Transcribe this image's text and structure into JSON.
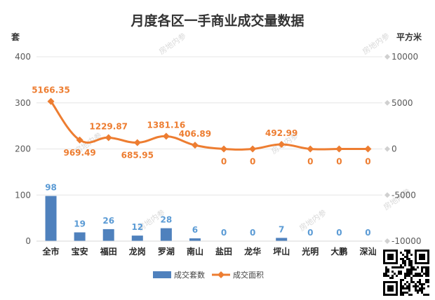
{
  "chart_data": {
    "type": "bar+line",
    "title": "月度各区一手商业成交量数据",
    "categories": [
      "全市",
      "宝安",
      "福田",
      "龙岗",
      "罗湖",
      "南山",
      "盐田",
      "龙华",
      "坪山",
      "光明",
      "大鹏",
      "深汕"
    ],
    "series": [
      {
        "name": "成交套数",
        "type": "bar",
        "axis": "left",
        "values": [
          98,
          19,
          26,
          12,
          28,
          6,
          0,
          0,
          7,
          0,
          0,
          0
        ],
        "labels": [
          "98",
          "19",
          "26",
          "12",
          "28",
          "6",
          "0",
          "0",
          "7",
          "0",
          "0",
          "0"
        ]
      },
      {
        "name": "成交面积",
        "type": "line",
        "axis": "right",
        "values": [
          5166.35,
          969.49,
          1229.87,
          685.95,
          1381.16,
          406.89,
          0,
          0,
          492.99,
          0,
          0,
          0
        ],
        "labels": [
          "5166.35",
          "969.49",
          "1229.87",
          "685.95",
          "1381.16",
          "406.89",
          "0",
          "0",
          "492.99",
          "0",
          "0",
          "0"
        ]
      }
    ],
    "y_left": {
      "label": "套",
      "ylim": [
        0,
        400
      ],
      "ticks": [
        "0",
        "100",
        "200",
        "300",
        "400"
      ]
    },
    "y_right": {
      "label": "平方米",
      "ylim": [
        -10000,
        10000
      ],
      "ticks": [
        "-10000",
        "-5000",
        "0",
        "5000",
        "10000"
      ]
    },
    "grid": true,
    "legend_position": "bottom",
    "colors": {
      "bar": "#4f81bd",
      "bar_label": "#5b9bd5",
      "line": "#ed7d31",
      "grid": "#e6e6e6"
    }
  },
  "watermark": "房地内参",
  "qr_code": "qr-code"
}
